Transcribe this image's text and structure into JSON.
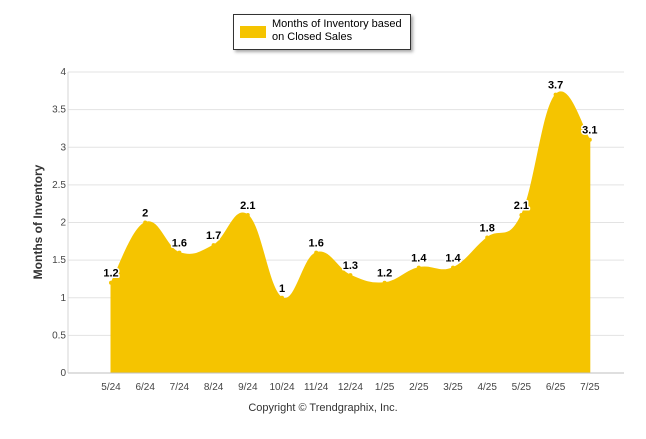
{
  "chart_data": {
    "type": "area",
    "title": "",
    "ylabel": "Months of Inventory",
    "xlabel": "",
    "categories": [
      "5/24",
      "6/24",
      "7/24",
      "8/24",
      "9/24",
      "10/24",
      "11/24",
      "12/24",
      "1/25",
      "2/25",
      "3/25",
      "4/25",
      "5/25",
      "6/25",
      "7/25"
    ],
    "series": [
      {
        "name": "Months of Inventory based on Closed Sales",
        "values": [
          1.2,
          2,
          1.6,
          1.7,
          2.1,
          1,
          1.6,
          1.3,
          1.2,
          1.4,
          1.4,
          1.8,
          2.1,
          3.7,
          3.1
        ],
        "color": "#F5C400"
      }
    ],
    "data_labels": [
      "1.2",
      "2",
      "1.6",
      "1.7",
      "2.1",
      "1",
      "1.6",
      "1.3",
      "1.2",
      "1.4",
      "1.4",
      "1.8",
      "2.1",
      "3.7",
      "3.1"
    ],
    "ylim": [
      0,
      4
    ],
    "yticks": [
      "0",
      "0.5",
      "1",
      "1.5",
      "2",
      "2.5",
      "3",
      "3.5",
      "4"
    ],
    "grid": true,
    "legend_position": "top-center"
  },
  "legend": {
    "label": "Months of Inventory based on Closed Sales",
    "color": "#F5C400"
  },
  "footer": {
    "copyright": "Copyright © Trendgraphix, Inc."
  }
}
